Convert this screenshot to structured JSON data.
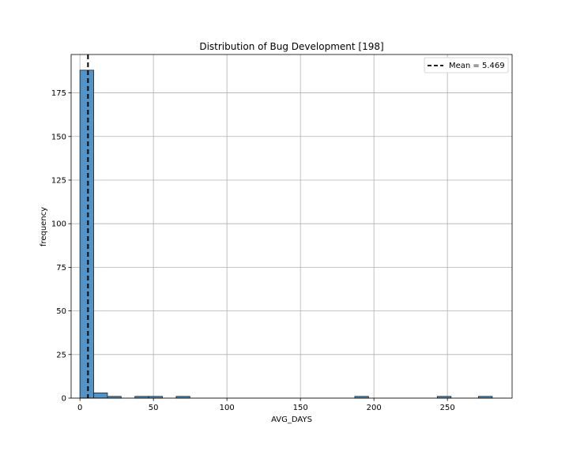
{
  "chart_data": {
    "type": "bar",
    "title": "Distribution of Bug Development [198]",
    "xlabel": "AVG_DAYS",
    "ylabel": "frequency",
    "xlim": [
      -6,
      294
    ],
    "ylim": [
      0,
      197
    ],
    "xticks": [
      0,
      50,
      100,
      150,
      200,
      250
    ],
    "yticks": [
      0,
      25,
      50,
      75,
      100,
      125,
      150,
      175
    ],
    "grid": true,
    "bin_width": 9.35,
    "bins": [
      {
        "x0": 0.0,
        "x1": 9.35,
        "count": 188
      },
      {
        "x0": 9.35,
        "x1": 18.7,
        "count": 3
      },
      {
        "x0": 18.7,
        "x1": 28.05,
        "count": 1
      },
      {
        "x0": 37.4,
        "x1": 46.75,
        "count": 1
      },
      {
        "x0": 46.75,
        "x1": 56.1,
        "count": 1
      },
      {
        "x0": 65.45,
        "x1": 74.8,
        "count": 1
      },
      {
        "x0": 187.0,
        "x1": 196.35,
        "count": 1
      },
      {
        "x0": 243.1,
        "x1": 252.45,
        "count": 1
      },
      {
        "x0": 271.15,
        "x1": 280.5,
        "count": 1
      }
    ],
    "mean": 5.469,
    "legend": {
      "label": "Mean = 5.469",
      "placement": "top-right"
    },
    "colors": {
      "bar_fill": "#5294c8",
      "bar_edge": "#1f1f1f",
      "mean_line": "#000000",
      "grid": "#b0b0b0"
    }
  }
}
